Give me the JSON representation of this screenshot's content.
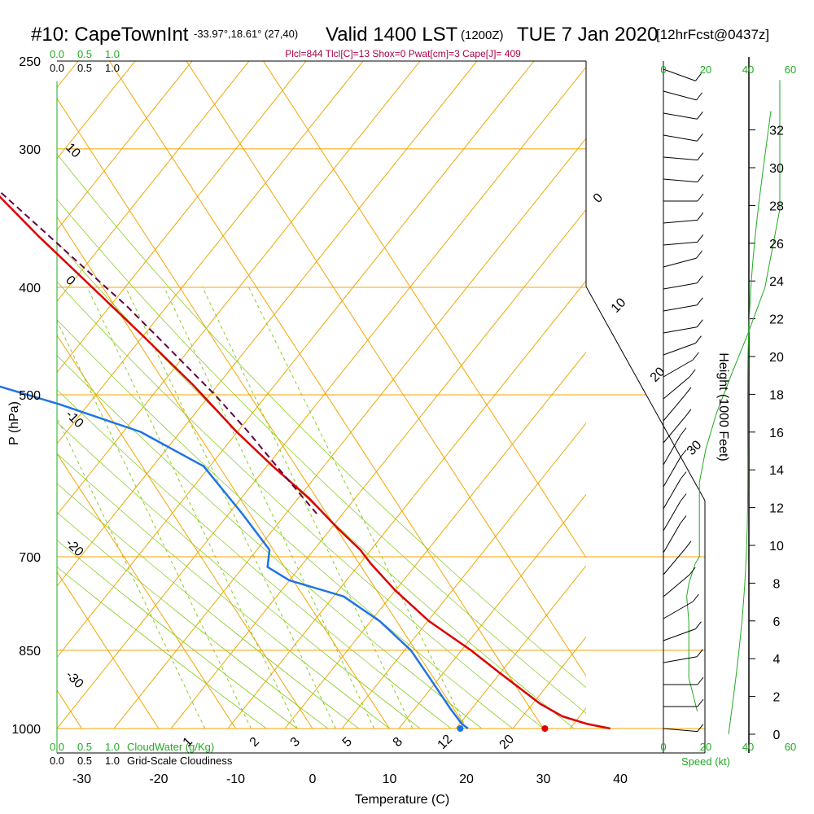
{
  "header": {
    "title_station": "#10: CapeTownInt",
    "title_coords": "-33.97°,18.61° (27,40)",
    "title_valid": "Valid 1400 LST",
    "title_z": "(1200Z)",
    "title_date": "TUE 7 Jan 2020",
    "title_fcst": "[12hrFcst@0437z]",
    "params": "Plcl=844 Tlcl[C]=13 Shox=0 Pwat[cm]=3 Cape[J]= 409"
  },
  "colors": {
    "isotherm": "#f5a500",
    "dry_adiabat": "#e8a800",
    "moist_adiabat": "#88cc22",
    "mixing_ratio": "#88cc22",
    "temperature": "#dd0000",
    "dewpoint": "#1e74e6",
    "parcel": "#660044",
    "cloud": "#22aa22",
    "params": "#aa0044"
  },
  "chart_data": {
    "type": "line",
    "subtype": "skew-T log-P sounding",
    "xlabel": "Temperature (C)",
    "ylabel": "P (hPa)",
    "right_label": "Height (1000 Feet)",
    "x_ticks": [
      "-30",
      "-20",
      "-10",
      "0",
      "10",
      "20",
      "30",
      "40"
    ],
    "pressure_ticks": [
      "250",
      "300",
      "400",
      "500",
      "700",
      "850",
      "1000"
    ],
    "height_ticks": [
      "0",
      "2",
      "4",
      "6",
      "8",
      "10",
      "12",
      "14",
      "16",
      "18",
      "20",
      "22",
      "24",
      "26",
      "28",
      "30",
      "32"
    ],
    "speed_ticks_top": [
      "0",
      "20",
      "40",
      "60"
    ],
    "speed_ticks_bottom": [
      "0",
      "20",
      "40",
      "60"
    ],
    "speed_label": "Speed (kt)",
    "cloud_ticks": [
      "0.0",
      "0.5",
      "1.0"
    ],
    "cloud_water_label": "CloudWater (g/Kg)",
    "cloudiness_label": "Grid-Scale Cloudiness",
    "dry_adiabat_labels": [
      "10",
      "0",
      "-10",
      "-20",
      "-30"
    ],
    "theta_labels_right": [
      "0",
      "10",
      "20",
      "30"
    ],
    "mixing_ratio_labels": [
      "1",
      "2",
      "3",
      "5",
      "8",
      "12",
      "20"
    ],
    "temperature": [
      [
        1.1,
        267
      ],
      [
        1.5,
        280
      ],
      [
        2.5,
        300
      ],
      [
        4.2,
        330
      ],
      [
        6,
        360
      ],
      [
        8,
        390
      ],
      [
        11,
        440
      ],
      [
        13.5,
        490
      ],
      [
        15.2,
        540
      ],
      [
        17,
        580
      ],
      [
        19,
        620
      ],
      [
        20.2,
        660
      ],
      [
        21.3,
        690
      ],
      [
        21.5,
        710
      ],
      [
        22.4,
        750
      ],
      [
        24.2,
        800
      ],
      [
        27.2,
        850
      ],
      [
        29,
        890
      ],
      [
        31.7,
        950
      ],
      [
        33.5,
        975
      ],
      [
        36,
        990
      ],
      [
        38.7,
        1000
      ]
    ],
    "dewpoint": [
      [
        -11.5,
        267
      ],
      [
        -9,
        285
      ],
      [
        -8,
        300
      ],
      [
        -7,
        325
      ],
      [
        -6.5,
        345
      ],
      [
        -7,
        375
      ],
      [
        -14,
        395
      ],
      [
        -20.5,
        425
      ],
      [
        -20.5,
        460
      ],
      [
        -14,
        485
      ],
      [
        -5.5,
        510
      ],
      [
        2.7,
        540
      ],
      [
        8,
        580
      ],
      [
        9,
        640
      ],
      [
        9.5,
        690
      ],
      [
        7.8,
        715
      ],
      [
        9.5,
        735
      ],
      [
        15.2,
        760
      ],
      [
        17.8,
        800
      ],
      [
        19.4,
        850
      ],
      [
        19.5,
        900
      ],
      [
        19.6,
        960
      ],
      [
        19.8,
        990
      ],
      [
        20.2,
        1000
      ]
    ],
    "parcel": [
      [
        2.8,
        305
      ],
      [
        4.9,
        330
      ],
      [
        7,
        355
      ],
      [
        9.3,
        385
      ],
      [
        11.5,
        415
      ],
      [
        13.5,
        455
      ],
      [
        15.5,
        500
      ],
      [
        16.7,
        540
      ],
      [
        17.5,
        580
      ],
      [
        18.3,
        620
      ],
      [
        18.7,
        640
      ]
    ],
    "surface_temperature": 30.2,
    "surface_dewpoint": 19.2,
    "wind_speed_profile": [
      [
        16,
        965
      ],
      [
        12,
        900
      ],
      [
        12,
        850
      ],
      [
        12,
        800
      ],
      [
        11,
        760
      ],
      [
        12,
        740
      ],
      [
        15,
        710
      ],
      [
        17,
        700
      ],
      [
        17,
        675
      ],
      [
        17,
        600
      ],
      [
        20,
        560
      ],
      [
        25,
        520
      ],
      [
        32,
        480
      ],
      [
        40,
        440
      ],
      [
        48,
        400
      ],
      [
        55,
        340
      ],
      [
        55,
        260
      ]
    ],
    "wind_barbs": [
      [
        265,
        300
      ],
      [
        270,
        320
      ],
      [
        270,
        350
      ],
      [
        280,
        370
      ],
      [
        290,
        420
      ],
      [
        300,
        445
      ],
      [
        310,
        475
      ],
      [
        320,
        500
      ],
      [
        330,
        520
      ],
      [
        330,
        540
      ],
      [
        330,
        565
      ],
      [
        330,
        600
      ],
      [
        330,
        630
      ],
      [
        320,
        660
      ],
      [
        320,
        690
      ],
      [
        310,
        730
      ],
      [
        300,
        780
      ],
      [
        290,
        830
      ],
      [
        280,
        880
      ],
      [
        280,
        920
      ],
      [
        280,
        955
      ],
      [
        285,
        990
      ],
      [
        275,
        1040
      ],
      [
        275,
        1085
      ],
      [
        270,
        1140
      ],
      [
        265,
        1200
      ],
      [
        265,
        1260
      ],
      [
        260,
        1330
      ],
      [
        260,
        1410
      ],
      [
        255,
        1500
      ],
      [
        250,
        1600
      ]
    ]
  }
}
